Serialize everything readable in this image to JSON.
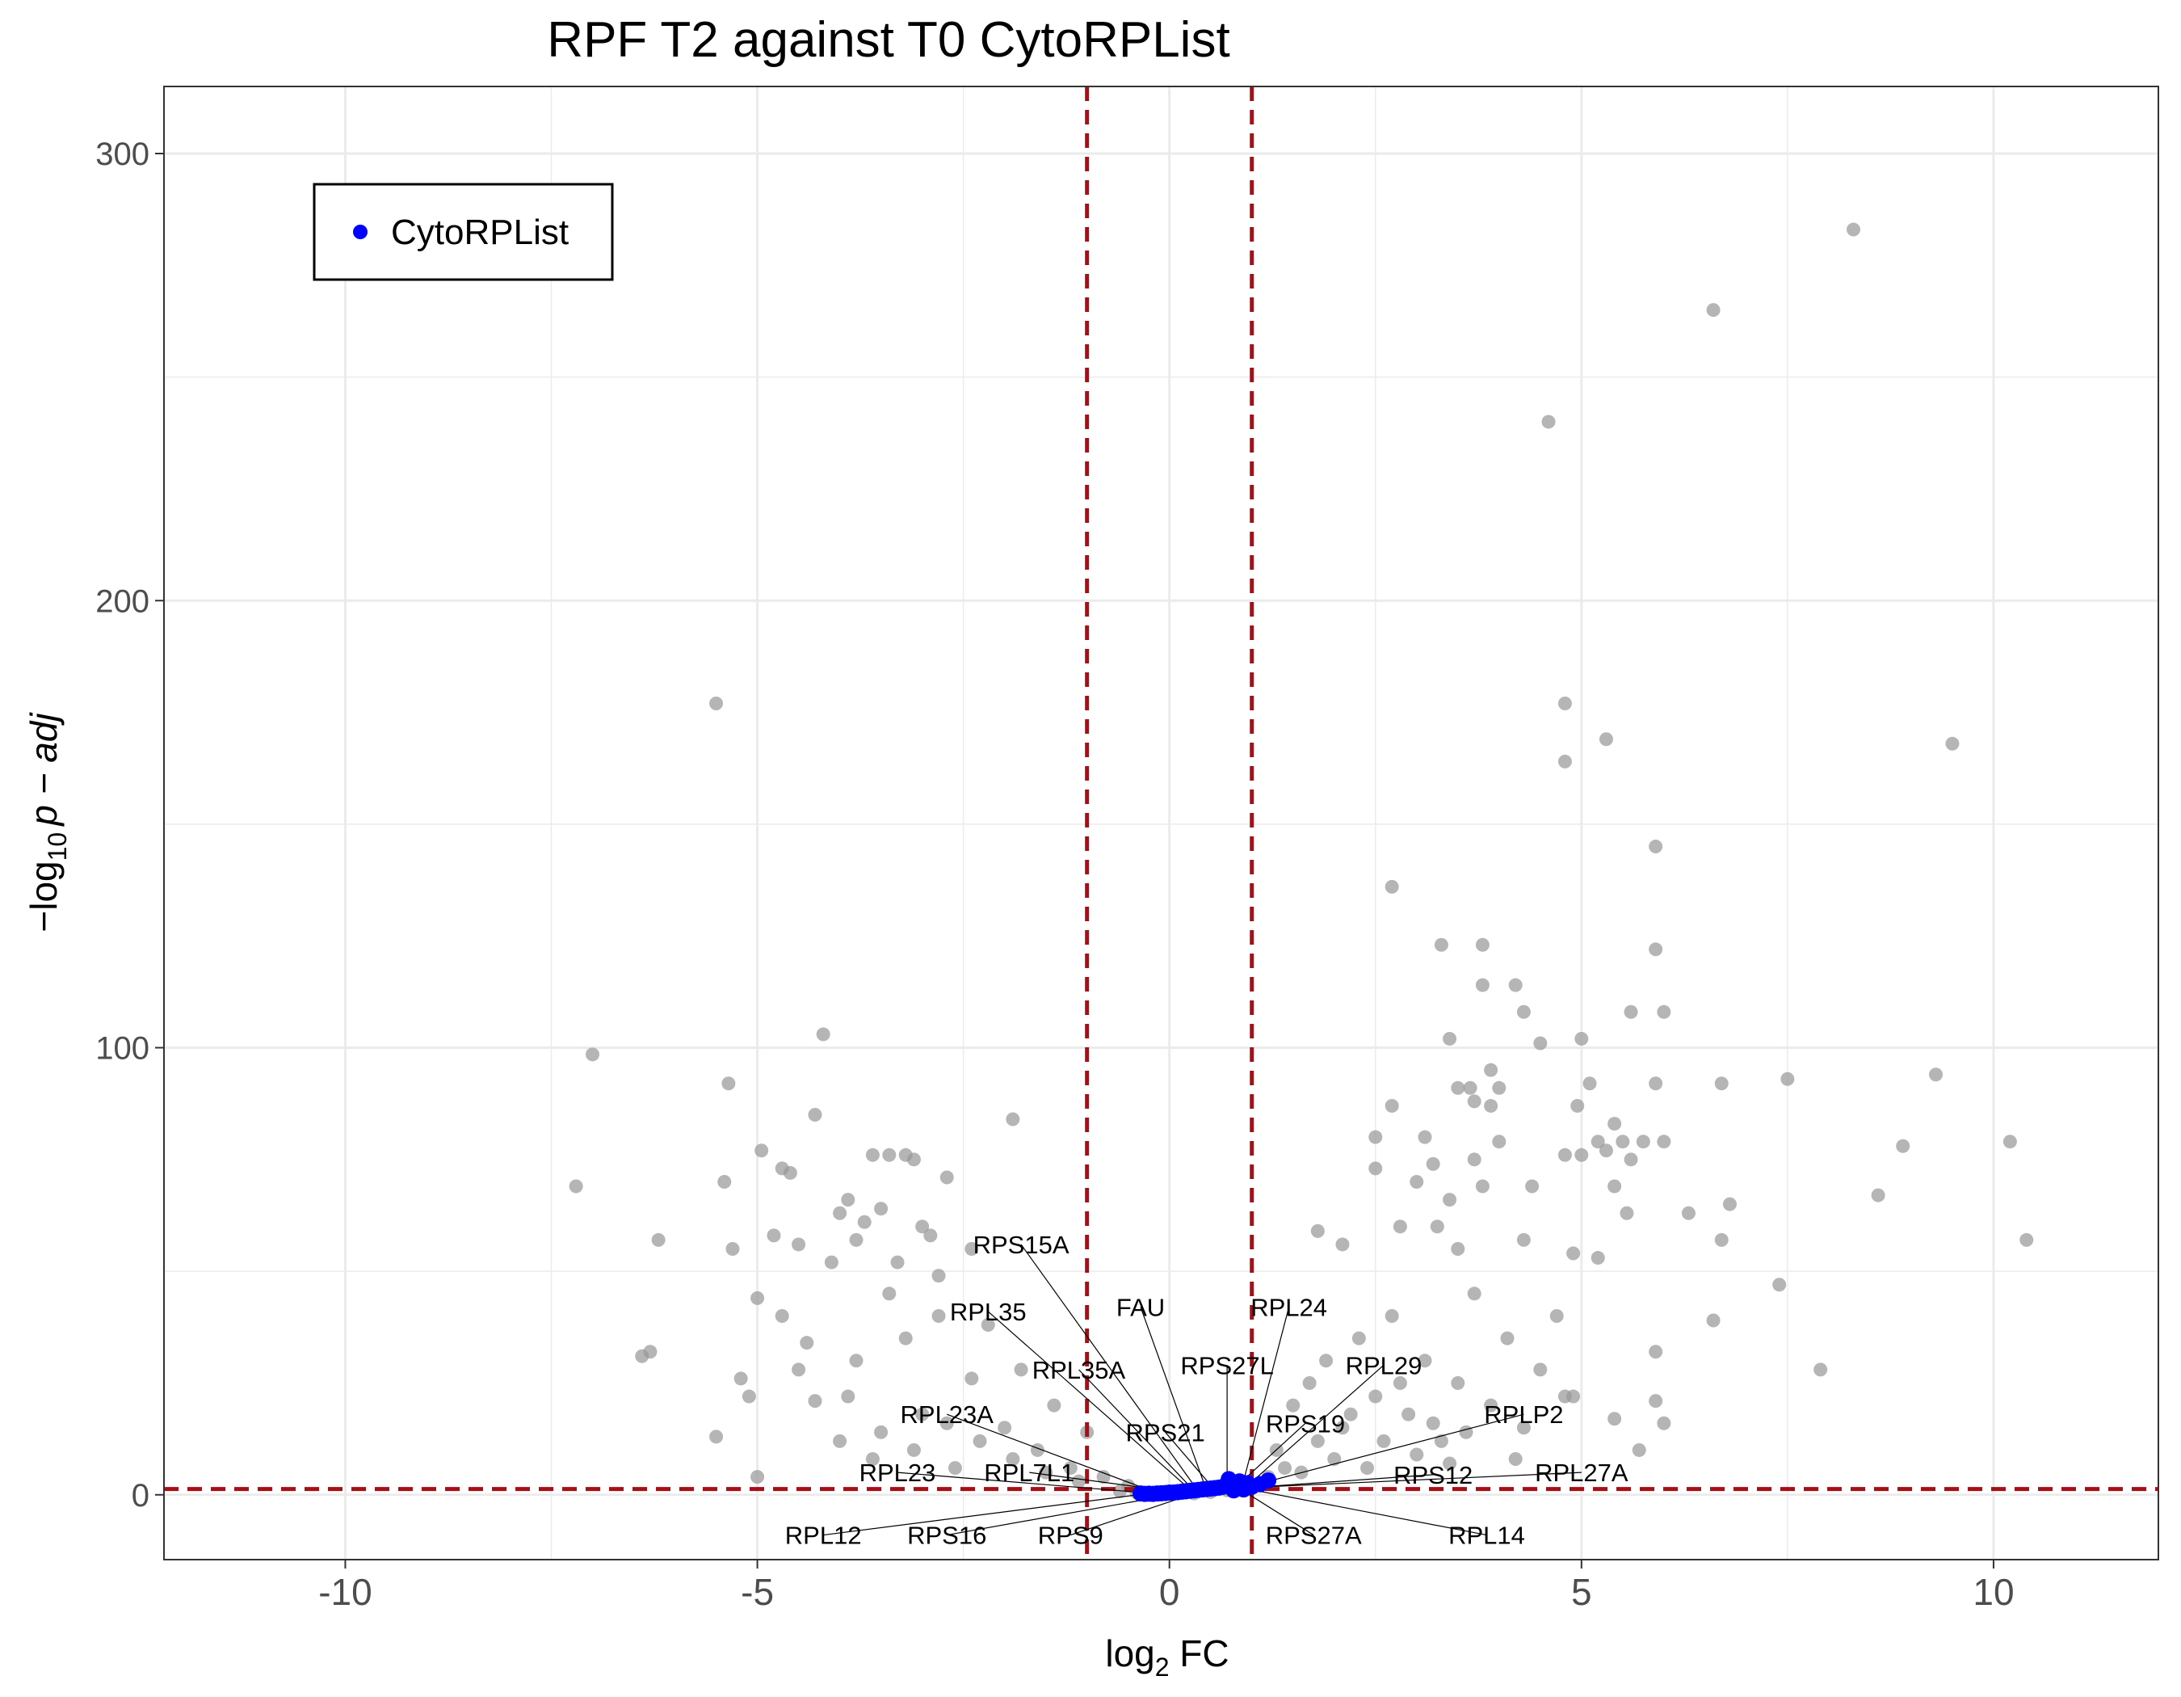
{
  "chart_data": {
    "type": "scatter",
    "title": "RPF T2 against T0 CytoRPList",
    "xlabel": {
      "base": "log",
      "sub": "2",
      "rest": " FC"
    },
    "ylabel": {
      "prefix": "−log",
      "sub": "10",
      "italic": "p − adj"
    },
    "xlim": [
      -12.2,
      12.0
    ],
    "ylim": [
      -14.5,
      315
    ],
    "x_ticks": [
      -10,
      -5,
      0,
      5,
      10
    ],
    "x_tick_labels": [
      "-10",
      "-5",
      "0",
      "5",
      "10"
    ],
    "y_ticks": [
      0,
      100,
      200,
      300
    ],
    "y_tick_labels": [
      "0",
      "100",
      "200",
      "300"
    ],
    "grid": true,
    "legend": {
      "position": "top-left",
      "entries": [
        {
          "label": "CytoRPList",
          "color": "#0000ff"
        }
      ]
    },
    "thresholds": {
      "x": [
        -1,
        1
      ],
      "y": 1.3,
      "color": "#a50f15",
      "style": "dashed"
    },
    "colors": {
      "background_genes": "#999999",
      "ribosomal_genes": "#0000ff"
    },
    "background_points": [
      [
        -7.2,
        69
      ],
      [
        -7.0,
        98.5
      ],
      [
        -6.4,
        31
      ],
      [
        -6.3,
        32
      ],
      [
        -6.2,
        57
      ],
      [
        -5.5,
        177
      ],
      [
        -5.5,
        13
      ],
      [
        -5.4,
        70
      ],
      [
        -5.35,
        92
      ],
      [
        -5.3,
        55
      ],
      [
        -5.2,
        26
      ],
      [
        -5.1,
        22
      ],
      [
        -5.0,
        44
      ],
      [
        -5.0,
        4
      ],
      [
        -4.95,
        77
      ],
      [
        -4.8,
        58
      ],
      [
        -4.7,
        73
      ],
      [
        -4.6,
        72
      ],
      [
        -4.5,
        56
      ],
      [
        -4.4,
        34
      ],
      [
        -4.3,
        85
      ],
      [
        -4.2,
        103
      ],
      [
        -4.1,
        52
      ],
      [
        -4.0,
        63
      ],
      [
        -3.9,
        66
      ],
      [
        -3.8,
        57
      ],
      [
        -3.7,
        61
      ],
      [
        -3.6,
        76
      ],
      [
        -3.5,
        64
      ],
      [
        -3.4,
        76
      ],
      [
        -3.3,
        52
      ],
      [
        -3.2,
        76
      ],
      [
        -3.1,
        75
      ],
      [
        -3.0,
        60
      ],
      [
        -2.9,
        58
      ],
      [
        -2.8,
        49
      ],
      [
        -2.7,
        71
      ],
      [
        -2.4,
        55
      ],
      [
        -1.9,
        84
      ],
      [
        -4.7,
        40
      ],
      [
        -4.5,
        28
      ],
      [
        -4.3,
        21
      ],
      [
        -4.0,
        12
      ],
      [
        -3.8,
        30
      ],
      [
        -3.6,
        8
      ],
      [
        -3.4,
        45
      ],
      [
        -3.2,
        35
      ],
      [
        -3.0,
        18
      ],
      [
        -2.8,
        40
      ],
      [
        -2.6,
        6
      ],
      [
        -2.4,
        26
      ],
      [
        -2.2,
        38
      ],
      [
        -2.0,
        15
      ],
      [
        -1.8,
        28
      ],
      [
        -1.6,
        10
      ],
      [
        -1.4,
        20
      ],
      [
        -1.2,
        6
      ],
      [
        -1.0,
        14
      ],
      [
        -0.8,
        4
      ],
      [
        -0.5,
        2
      ],
      [
        -3.9,
        22
      ],
      [
        -3.5,
        14
      ],
      [
        -3.1,
        10
      ],
      [
        -2.7,
        16
      ],
      [
        -2.3,
        12
      ],
      [
        -1.9,
        8
      ],
      [
        -1.5,
        5
      ],
      [
        -1.1,
        3
      ],
      [
        8.3,
        283
      ],
      [
        6.6,
        265
      ],
      [
        4.6,
        240
      ],
      [
        4.8,
        177
      ],
      [
        5.3,
        169
      ],
      [
        4.8,
        164
      ],
      [
        9.5,
        168
      ],
      [
        5.9,
        145
      ],
      [
        2.7,
        136
      ],
      [
        3.3,
        123
      ],
      [
        3.8,
        123
      ],
      [
        5.9,
        122
      ],
      [
        3.8,
        114
      ],
      [
        4.2,
        114
      ],
      [
        4.3,
        108
      ],
      [
        5.6,
        108
      ],
      [
        6.0,
        108
      ],
      [
        3.4,
        102
      ],
      [
        4.5,
        101
      ],
      [
        5.0,
        102
      ],
      [
        3.9,
        95
      ],
      [
        3.5,
        91
      ],
      [
        3.65,
        91
      ],
      [
        4.0,
        91
      ],
      [
        5.1,
        92
      ],
      [
        5.9,
        92
      ],
      [
        6.7,
        92
      ],
      [
        7.5,
        93
      ],
      [
        9.3,
        94
      ],
      [
        2.7,
        87
      ],
      [
        3.7,
        88
      ],
      [
        3.9,
        87
      ],
      [
        4.95,
        87
      ],
      [
        2.5,
        80
      ],
      [
        3.1,
        80
      ],
      [
        4.0,
        79
      ],
      [
        5.2,
        79
      ],
      [
        5.4,
        83
      ],
      [
        5.5,
        79
      ],
      [
        5.75,
        79
      ],
      [
        6.0,
        79
      ],
      [
        8.9,
        78
      ],
      [
        10.2,
        79
      ],
      [
        2.5,
        73
      ],
      [
        3.2,
        74
      ],
      [
        3.7,
        75
      ],
      [
        4.8,
        76
      ],
      [
        5.0,
        76
      ],
      [
        5.3,
        77
      ],
      [
        5.6,
        75
      ],
      [
        3.0,
        70
      ],
      [
        3.4,
        66
      ],
      [
        3.8,
        69
      ],
      [
        4.4,
        69
      ],
      [
        5.4,
        69
      ],
      [
        8.6,
        67
      ],
      [
        5.55,
        63
      ],
      [
        6.3,
        63
      ],
      [
        6.8,
        65
      ],
      [
        1.8,
        59
      ],
      [
        2.8,
        60
      ],
      [
        3.25,
        60
      ],
      [
        2.1,
        56
      ],
      [
        3.5,
        55
      ],
      [
        4.3,
        57
      ],
      [
        6.7,
        57
      ],
      [
        10.4,
        57
      ],
      [
        4.9,
        54
      ],
      [
        5.2,
        53
      ],
      [
        7.4,
        47
      ],
      [
        6.6,
        39
      ],
      [
        5.9,
        32
      ],
      [
        7.9,
        28
      ],
      [
        5.9,
        21
      ],
      [
        6.0,
        16
      ],
      [
        5.4,
        17
      ],
      [
        5.7,
        10
      ],
      [
        4.8,
        22
      ],
      [
        4.2,
        8
      ],
      [
        1.5,
        20
      ],
      [
        1.7,
        25
      ],
      [
        1.9,
        30
      ],
      [
        2.1,
        15
      ],
      [
        2.3,
        35
      ],
      [
        2.5,
        22
      ],
      [
        2.7,
        40
      ],
      [
        2.9,
        18
      ],
      [
        3.1,
        30
      ],
      [
        3.3,
        12
      ],
      [
        3.5,
        25
      ],
      [
        3.7,
        45
      ],
      [
        3.9,
        20
      ],
      [
        4.1,
        35
      ],
      [
        4.3,
        15
      ],
      [
        4.5,
        28
      ],
      [
        4.7,
        40
      ],
      [
        4.9,
        22
      ],
      [
        1.3,
        10
      ],
      [
        1.6,
        5
      ],
      [
        1.8,
        12
      ],
      [
        2.0,
        8
      ],
      [
        2.2,
        18
      ],
      [
        2.4,
        6
      ],
      [
        2.6,
        12
      ],
      [
        2.8,
        25
      ],
      [
        3.0,
        9
      ],
      [
        3.2,
        16
      ],
      [
        3.4,
        7
      ],
      [
        3.6,
        14
      ],
      [
        1.2,
        4
      ],
      [
        1.4,
        6
      ],
      [
        1.1,
        2
      ],
      [
        0.9,
        1.5
      ],
      [
        0.7,
        1
      ],
      [
        0.5,
        0.6
      ],
      [
        0.3,
        0.3
      ],
      [
        -0.2,
        0.3
      ],
      [
        -0.4,
        0.5
      ],
      [
        -0.6,
        0.8
      ]
    ],
    "cyto_points": [
      [
        -0.35,
        0.3
      ],
      [
        -0.3,
        0.2
      ],
      [
        -0.25,
        0.25
      ],
      [
        -0.2,
        0.2
      ],
      [
        -0.15,
        0.3
      ],
      [
        -0.1,
        0.35
      ],
      [
        -0.05,
        0.4
      ],
      [
        0.0,
        0.5
      ],
      [
        0.05,
        0.5
      ],
      [
        0.1,
        0.6
      ],
      [
        0.15,
        0.7
      ],
      [
        0.2,
        0.8
      ],
      [
        0.25,
        0.9
      ],
      [
        0.3,
        1.0
      ],
      [
        0.35,
        1.1
      ],
      [
        0.4,
        1.2
      ],
      [
        0.45,
        1.3
      ],
      [
        0.5,
        1.4
      ],
      [
        0.55,
        1.5
      ],
      [
        0.6,
        1.6
      ],
      [
        0.65,
        1.8
      ],
      [
        0.7,
        2.0
      ],
      [
        0.72,
        3.5
      ],
      [
        0.75,
        2.2
      ],
      [
        0.78,
        1.0
      ],
      [
        0.8,
        2.5
      ],
      [
        0.82,
        1.5
      ],
      [
        0.85,
        3.0
      ],
      [
        0.88,
        2.0
      ],
      [
        0.9,
        1.2
      ],
      [
        0.95,
        2.6
      ],
      [
        1.0,
        1.8
      ],
      [
        1.1,
        2.4
      ],
      [
        1.2,
        3.2
      ]
    ],
    "labeled_genes": [
      {
        "gene": "RPS15A",
        "x": 0.35,
        "y": 0.8,
        "lx": -1.8,
        "ly": 56
      },
      {
        "gene": "FAU",
        "x": 0.45,
        "y": 1.0,
        "lx": -0.35,
        "ly": 42
      },
      {
        "gene": "RPL24",
        "x": 0.88,
        "y": 1.7,
        "lx": 1.45,
        "ly": 42
      },
      {
        "gene": "RPL35",
        "x": 0.28,
        "y": 0.7,
        "lx": -2.2,
        "ly": 41
      },
      {
        "gene": "RPS27L",
        "x": 0.7,
        "y": 1.3,
        "lx": 0.7,
        "ly": 29
      },
      {
        "gene": "RPL29",
        "x": 0.92,
        "y": 1.6,
        "lx": 2.6,
        "ly": 29
      },
      {
        "gene": "RPL35A",
        "x": 0.3,
        "y": 0.9,
        "lx": -1.1,
        "ly": 28
      },
      {
        "gene": "RPL23A",
        "x": -0.15,
        "y": 0.4,
        "lx": -2.7,
        "ly": 18
      },
      {
        "gene": "RPS19",
        "x": 0.78,
        "y": 1.3,
        "lx": 1.65,
        "ly": 16
      },
      {
        "gene": "RPLP2",
        "x": 0.95,
        "y": 1.8,
        "lx": 4.3,
        "ly": 18
      },
      {
        "gene": "RPS21",
        "x": 0.55,
        "y": 1.1,
        "lx": -0.05,
        "ly": 14
      },
      {
        "gene": "RPL23",
        "x": -0.2,
        "y": 0.3,
        "lx": -3.3,
        "ly": 5
      },
      {
        "gene": "RPL7L1",
        "x": 0.1,
        "y": 0.6,
        "lx": -1.7,
        "ly": 5
      },
      {
        "gene": "RPS12",
        "x": 0.9,
        "y": 1.5,
        "lx": 3.2,
        "ly": 4.5
      },
      {
        "gene": "RPL27A",
        "x": 0.95,
        "y": 1.6,
        "lx": 5.0,
        "ly": 5
      },
      {
        "gene": "RPL12",
        "x": -0.3,
        "y": 0.2,
        "lx": -4.2,
        "ly": -9
      },
      {
        "gene": "RPS16",
        "x": 0.15,
        "y": 0.4,
        "lx": -2.7,
        "ly": -9
      },
      {
        "gene": "RPS9",
        "x": 0.4,
        "y": 0.9,
        "lx": -1.2,
        "ly": -9
      },
      {
        "gene": "RPS27A",
        "x": 0.85,
        "y": 1.4,
        "lx": 1.75,
        "ly": -9
      },
      {
        "gene": "RPL14",
        "x": 0.95,
        "y": 1.3,
        "lx": 3.85,
        "ly": -9
      }
    ]
  }
}
